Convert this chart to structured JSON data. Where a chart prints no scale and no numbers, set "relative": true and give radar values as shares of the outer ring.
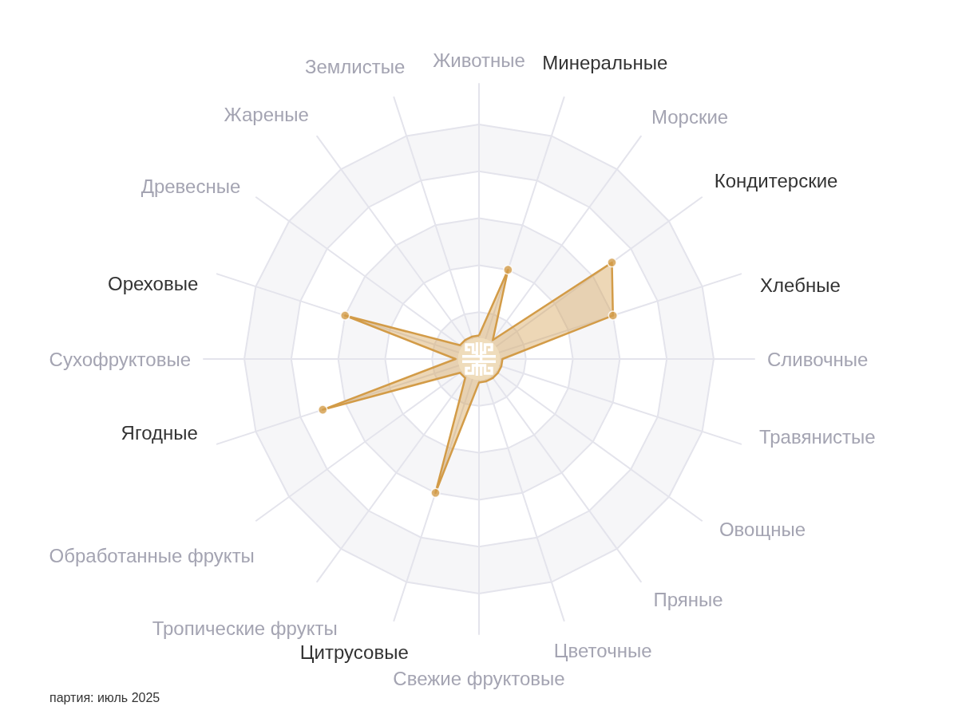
{
  "chart_data": {
    "type": "radar",
    "categories": [
      "Животные",
      "Минеральные",
      "Морские",
      "Кондитерские",
      "Хлебные",
      "Сливочные",
      "Травянистые",
      "Овощные",
      "Пряные",
      "Цветочные",
      "Свежие фруктовые",
      "Цитрусовые",
      "Тропические фрукты",
      "Обработанные фрукты",
      "Ягодные",
      "Сухофруктовые",
      "Ореховые",
      "Древесные",
      "Жареные",
      "Землистые"
    ],
    "series": [
      {
        "color": "#d39c48",
        "values": [
          0.1,
          0.4,
          0.1,
          0.7,
          0.6,
          0.1,
          0.1,
          0.1,
          0.1,
          0.1,
          0.1,
          0.6,
          0.1,
          0.1,
          0.7,
          0.1,
          0.6,
          0.1,
          0.1,
          0.1
        ]
      }
    ],
    "relative": true,
    "grid": true,
    "marker": "circle",
    "annotations": [
      "партия: июль 2025"
    ]
  }
}
